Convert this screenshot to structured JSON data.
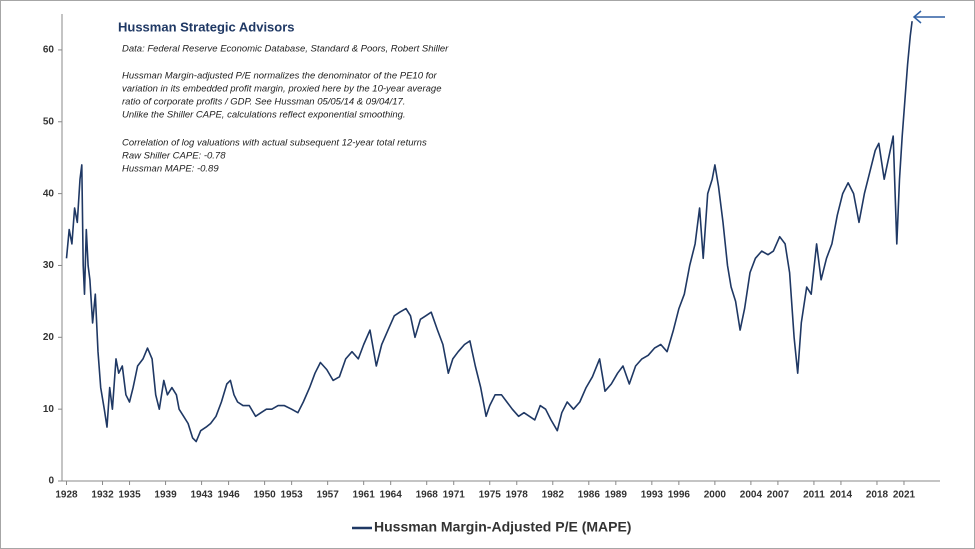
{
  "chart_data": {
    "type": "line",
    "title": "Hussman Strategic Advisors",
    "annotations": [
      "Data: Federal Reserve Economic Database, Standard & Poors, Robert Shiller",
      "Hussman Margin-adjusted P/E normalizes the denominator of the PE10 for",
      "variation in its embedded profit margin, proxied here by the 10-year average",
      "ratio of corporate profits / GDP. See Hussman 05/05/14  & 09/04/17.",
      "Unlike the Shiller CAPE, calculations reflect exponential smoothing.",
      "Correlation of log valuations with actual subsequent 12-year total returns",
      "Raw Shiller CAPE: -0.78",
      "Hussman MAPE: -0.89"
    ],
    "xlim": [
      1927.5,
      2025
    ],
    "xticks": [
      1928,
      1932,
      1935,
      1939,
      1943,
      1946,
      1950,
      1953,
      1957,
      1961,
      1964,
      1968,
      1971,
      1975,
      1978,
      1982,
      1986,
      1989,
      1993,
      1996,
      2000,
      2004,
      2007,
      2011,
      2014,
      2018,
      2021
    ],
    "ylim": [
      0,
      65
    ],
    "yticks": [
      0,
      10,
      20,
      30,
      40,
      50,
      60
    ],
    "grid": false,
    "x": [
      1928.0,
      1928.3,
      1928.6,
      1928.9,
      1929.2,
      1929.5,
      1929.7,
      1929.85,
      1930.0,
      1930.2,
      1930.4,
      1930.6,
      1930.9,
      1931.2,
      1931.5,
      1931.8,
      1932.2,
      1932.5,
      1932.8,
      1933.1,
      1933.5,
      1933.8,
      1934.2,
      1934.6,
      1935.0,
      1935.4,
      1935.9,
      1936.5,
      1937.0,
      1937.5,
      1937.9,
      1938.3,
      1938.8,
      1939.2,
      1939.7,
      1940.2,
      1940.5,
      1941.0,
      1941.5,
      1942.0,
      1942.4,
      1942.9,
      1943.5,
      1944.0,
      1944.6,
      1945.2,
      1945.8,
      1946.2,
      1946.6,
      1947.0,
      1947.6,
      1948.3,
      1949.0,
      1949.6,
      1950.2,
      1950.8,
      1951.5,
      1952.2,
      1953.0,
      1953.7,
      1954.3,
      1955.0,
      1955.6,
      1956.2,
      1956.9,
      1957.6,
      1958.3,
      1959.0,
      1959.7,
      1960.4,
      1961.0,
      1961.7,
      1962.4,
      1963.0,
      1963.7,
      1964.4,
      1965.0,
      1965.7,
      1966.2,
      1966.7,
      1967.3,
      1967.9,
      1968.5,
      1969.2,
      1969.8,
      1970.4,
      1970.9,
      1971.5,
      1972.2,
      1972.8,
      1973.4,
      1974.0,
      1974.6,
      1975.0,
      1975.6,
      1976.3,
      1976.9,
      1977.5,
      1978.2,
      1978.8,
      1979.4,
      1980.0,
      1980.6,
      1981.2,
      1981.8,
      1982.5,
      1983.0,
      1983.6,
      1984.3,
      1985.0,
      1985.7,
      1986.4,
      1987.2,
      1987.8,
      1988.5,
      1989.2,
      1989.8,
      1990.5,
      1991.2,
      1991.9,
      1992.6,
      1993.3,
      1994.0,
      1994.7,
      1995.4,
      1996.0,
      1996.6,
      1997.2,
      1997.8,
      1998.3,
      1998.7,
      1999.2,
      1999.7,
      2000.0,
      2000.4,
      2000.9,
      2001.4,
      2001.8,
      2002.3,
      2002.8,
      2003.3,
      2003.9,
      2004.5,
      2005.2,
      2005.9,
      2006.5,
      2007.2,
      2007.8,
      2008.3,
      2008.8,
      2009.2,
      2009.6,
      2010.2,
      2010.7,
      2011.3,
      2011.8,
      2012.4,
      2013.0,
      2013.6,
      2014.2,
      2014.8,
      2015.4,
      2016.0,
      2016.6,
      2017.2,
      2017.8,
      2018.2,
      2018.8,
      2019.3,
      2019.8,
      2020.2,
      2020.5,
      2020.8,
      2021.1,
      2021.4,
      2021.7,
      2021.9
    ],
    "series": [
      {
        "name": "Hussman Margin-Adjusted P/E (MAPE)",
        "color": "#1f3864",
        "values": [
          31,
          35,
          33,
          38,
          36,
          42,
          44,
          30,
          26,
          35,
          30,
          28,
          22,
          26,
          18,
          13,
          10,
          7.5,
          13,
          10,
          17,
          15,
          16,
          12,
          11,
          13,
          16,
          17,
          18.5,
          17,
          12,
          10,
          14,
          12,
          13,
          12,
          10,
          9,
          8,
          6,
          5.5,
          7,
          7.5,
          8,
          9,
          11,
          13.5,
          14,
          12,
          11,
          10.5,
          10.5,
          9,
          9.5,
          10,
          10,
          10.5,
          10.5,
          10,
          9.5,
          11,
          13,
          15,
          16.5,
          15.5,
          14,
          14.5,
          17,
          18,
          17,
          19,
          21,
          16,
          19,
          21,
          23,
          23.5,
          24,
          23,
          20,
          22.5,
          23,
          23.5,
          21,
          19,
          15,
          17,
          18,
          19,
          19.5,
          16,
          13,
          9,
          10.5,
          12,
          12,
          11,
          10,
          9,
          9.5,
          9,
          8.5,
          10.5,
          10,
          8.5,
          7,
          9.5,
          11,
          10,
          11,
          13,
          14.5,
          17,
          12.5,
          13.5,
          15,
          16,
          13.5,
          16,
          17,
          17.5,
          18.5,
          19,
          18,
          21,
          24,
          26,
          30,
          33,
          38,
          31,
          40,
          42,
          44,
          41,
          36,
          30,
          27,
          25,
          21,
          24,
          29,
          31,
          32,
          31.5,
          32,
          34,
          33,
          29,
          20,
          15,
          22,
          27,
          26,
          33,
          28,
          31,
          33,
          37,
          40,
          41.5,
          40,
          36,
          40,
          43,
          46,
          47,
          42,
          45,
          48,
          33,
          42,
          48,
          53,
          58,
          62,
          64
        ]
      }
    ]
  }
}
